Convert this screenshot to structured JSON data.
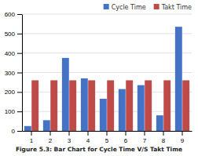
{
  "chart_data": {
    "type": "bar",
    "title": "Figure 5.3: Bar Chart for Cycle Time V/S Takt Time",
    "categories": [
      1,
      2,
      3,
      4,
      5,
      6,
      7,
      8,
      9
    ],
    "series": [
      {
        "name": "Cycle Time",
        "color": "#4472C4",
        "values": [
          25,
          55,
          375,
          270,
          165,
          215,
          235,
          80,
          535
        ]
      },
      {
        "name": "Takt Time",
        "color": "#BE4B48",
        "values": [
          260,
          260,
          260,
          260,
          260,
          260,
          260,
          260,
          260
        ]
      }
    ],
    "ylim": [
      0,
      600
    ],
    "yticks": [
      0,
      100,
      200,
      300,
      400,
      500,
      600
    ],
    "grid": true,
    "legend": "upper right"
  }
}
